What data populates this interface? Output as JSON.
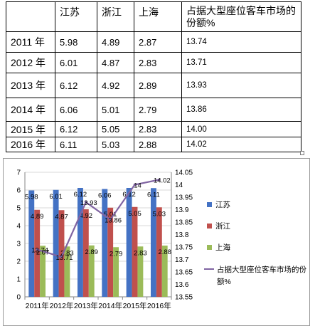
{
  "table": {
    "headers": [
      "",
      "江苏",
      "浙江",
      "上海",
      "占据大型座位客车市场的份额%"
    ],
    "rows": [
      [
        "2011 年",
        "5.98",
        "4.89",
        "2.87",
        "13.74"
      ],
      [
        "2012 年",
        "6.01",
        "4.87",
        "2.83",
        "13.71"
      ],
      [
        "2013 年",
        "6.12",
        "4.92",
        "2.89",
        "13.93"
      ],
      [
        "2014 年",
        "6.06",
        "5.01",
        "2.79",
        "13.86"
      ],
      [
        "2015 年",
        "6.12",
        "5.05",
        "2.83",
        "14.00"
      ],
      [
        "2016 年",
        "6.11",
        "5.03",
        "2.88",
        "14.02"
      ]
    ]
  },
  "chart_data": {
    "type": "bar",
    "categories": [
      "2011年",
      "2012年",
      "2013年",
      "2014年",
      "2015年",
      "2016年"
    ],
    "series": [
      {
        "name": "江苏",
        "type": "bar",
        "axis": "left",
        "color": "#4472c4",
        "values": [
          5.98,
          6.01,
          6.12,
          6.06,
          6.12,
          6.11
        ],
        "labels": [
          "5.98",
          "6.01",
          "6.12",
          "6.06",
          "6.12",
          "6.11"
        ]
      },
      {
        "name": "浙江",
        "type": "bar",
        "axis": "left",
        "color": "#c0504d",
        "values": [
          4.89,
          4.87,
          4.92,
          5.01,
          5.05,
          5.03
        ],
        "labels": [
          "4.89",
          "4.87",
          "4.92",
          "5.01",
          "5.05",
          "5.03"
        ]
      },
      {
        "name": "上海",
        "type": "bar",
        "axis": "left",
        "color": "#9bbb59",
        "values": [
          2.87,
          2.83,
          2.89,
          2.79,
          2.83,
          2.88
        ],
        "labels": [
          "2.87",
          "2.83",
          "2.89",
          "2.79",
          "2.83",
          "2.88"
        ]
      },
      {
        "name": "占据大型座位客车市场的份额%",
        "type": "line",
        "axis": "right",
        "color": "#8064a2",
        "values": [
          13.74,
          13.71,
          13.93,
          13.86,
          14.0,
          14.02
        ],
        "labels": [
          "13.74",
          "13.71",
          "13.93",
          "13.86",
          "14",
          "14.02"
        ]
      }
    ],
    "y_left": {
      "min": 0,
      "max": 7,
      "ticks": [
        "0",
        "1",
        "2",
        "3",
        "4",
        "5",
        "6",
        "7"
      ]
    },
    "y_right": {
      "min": 13.55,
      "max": 14.05,
      "ticks": [
        "13.55",
        "13.6",
        "13.65",
        "13.7",
        "13.75",
        "13.8",
        "13.85",
        "13.9",
        "13.95",
        "14",
        "14.05"
      ]
    },
    "grid": true,
    "legend": "right"
  }
}
